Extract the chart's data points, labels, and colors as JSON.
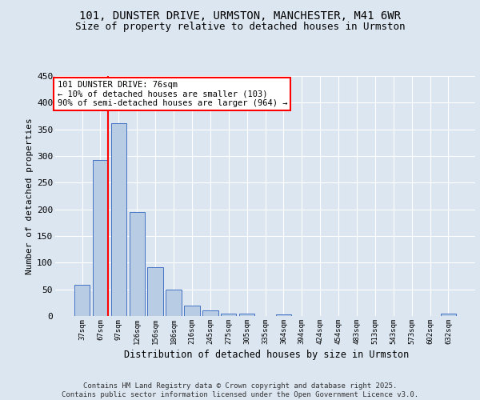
{
  "title1": "101, DUNSTER DRIVE, URMSTON, MANCHESTER, M41 6WR",
  "title2": "Size of property relative to detached houses in Urmston",
  "xlabel": "Distribution of detached houses by size in Urmston",
  "ylabel": "Number of detached properties",
  "footer": "Contains HM Land Registry data © Crown copyright and database right 2025.\nContains public sector information licensed under the Open Government Licence v3.0.",
  "categories": [
    "37sqm",
    "67sqm",
    "97sqm",
    "126sqm",
    "156sqm",
    "186sqm",
    "216sqm",
    "245sqm",
    "275sqm",
    "305sqm",
    "335sqm",
    "364sqm",
    "394sqm",
    "424sqm",
    "454sqm",
    "483sqm",
    "513sqm",
    "543sqm",
    "573sqm",
    "602sqm",
    "632sqm"
  ],
  "values": [
    58,
    292,
    362,
    195,
    92,
    50,
    20,
    10,
    5,
    5,
    0,
    3,
    0,
    0,
    0,
    0,
    0,
    0,
    0,
    0,
    4
  ],
  "bar_color": "#b8cce4",
  "bar_edge_color": "#4472c4",
  "bg_color": "#dce6f1",
  "grid_color": "#ffffff",
  "vline_color": "red",
  "vline_x": 1.42,
  "annotation_text": "101 DUNSTER DRIVE: 76sqm\n← 10% of detached houses are smaller (103)\n90% of semi-detached houses are larger (964) →",
  "ylim": [
    0,
    450
  ],
  "yticks": [
    0,
    50,
    100,
    150,
    200,
    250,
    300,
    350,
    400,
    450
  ],
  "title1_fontsize": 10,
  "title2_fontsize": 9,
  "annot_fontsize": 7.5,
  "footer_fontsize": 6.5,
  "ylabel_fontsize": 8,
  "xlabel_fontsize": 8.5,
  "ytick_fontsize": 8,
  "xtick_fontsize": 6.5
}
